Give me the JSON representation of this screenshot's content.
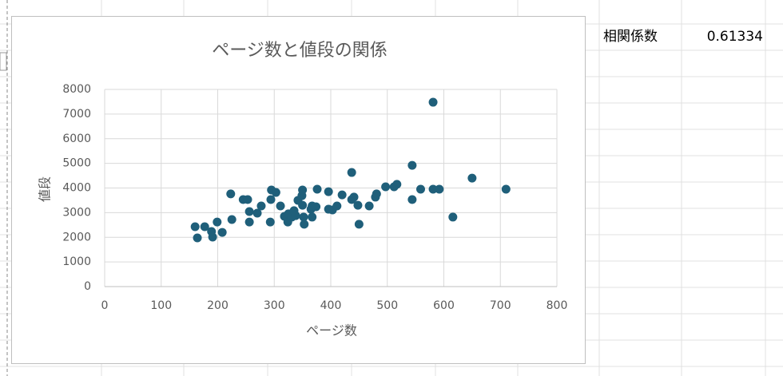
{
  "chart_data": {
    "type": "scatter",
    "title": "ページ数と値段の関係",
    "x_label": "ページ数",
    "y_label": "値段",
    "x": [
      160,
      164,
      177,
      189,
      191,
      199,
      208,
      223,
      225,
      245,
      253,
      256,
      256,
      270,
      277,
      293,
      294,
      295,
      303,
      311,
      318,
      324,
      325,
      331,
      335,
      338,
      342,
      349,
      350,
      350,
      352,
      353,
      365,
      367,
      367,
      374,
      376,
      396,
      396,
      403,
      411,
      420,
      437,
      437,
      441,
      448,
      450,
      468,
      479,
      481,
      497,
      512,
      517,
      544,
      544,
      559,
      581,
      581,
      592,
      616,
      650,
      710
    ],
    "values": [
      2430,
      1975,
      2430,
      2235,
      2010,
      2620,
      2200,
      3760,
      2720,
      3530,
      3530,
      3045,
      2620,
      2980,
      3270,
      2620,
      3530,
      3920,
      3820,
      3270,
      2850,
      2620,
      2950,
      2820,
      3080,
      2880,
      3500,
      3690,
      3920,
      3300,
      2820,
      2530,
      3140,
      3270,
      2820,
      3240,
      3950,
      3140,
      3850,
      3110,
      3270,
      3720,
      4630,
      3530,
      3630,
      3300,
      2530,
      3270,
      3630,
      3760,
      4050,
      4050,
      4150,
      4920,
      3530,
      3950,
      7480,
      3950,
      3950,
      2820,
      4400,
      3950
    ],
    "color": "#1f5f7a",
    "xlim": [
      0,
      800
    ],
    "xticks": [
      0,
      100,
      200,
      300,
      400,
      500,
      600,
      700,
      800
    ],
    "ylim": [
      0,
      8000
    ],
    "yticks": [
      0,
      1000,
      2000,
      3000,
      4000,
      5000,
      6000,
      7000,
      8000
    ],
    "grid": true
  },
  "sheet": {
    "label": "相関係数",
    "value": 0.61334
  }
}
